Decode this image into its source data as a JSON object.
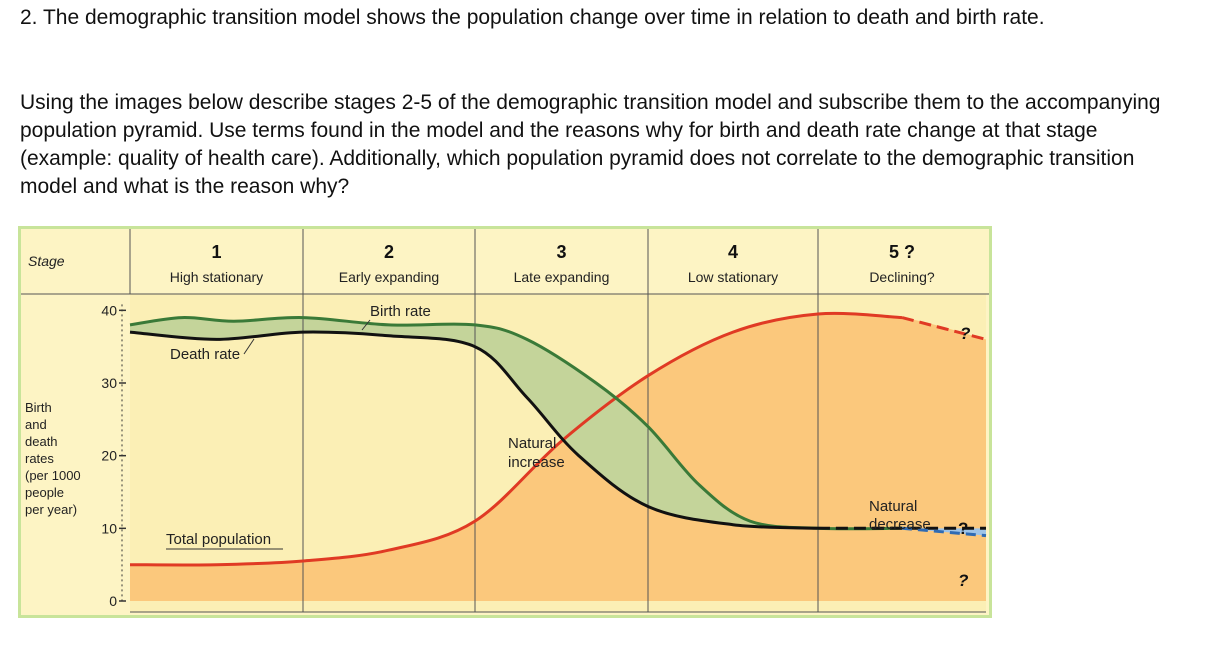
{
  "question": {
    "intro": "2. The demographic transition model shows the population change over time in relation to death and birth rate.",
    "instructions": "Using the images below describe stages 2-5 of the demographic transition model and subscribe them to the accompanying population pyramid. Use terms found in the model and the reasons why for birth and death rate change at that stage (example: quality of health care). Additionally, which population pyramid does not correlate to the demographic transition model and what is the reason why?"
  },
  "chart_data": {
    "type": "area",
    "stage_header": "Stage",
    "stages": [
      {
        "number": "1",
        "name": "High stationary"
      },
      {
        "number": "2",
        "name": "Early expanding"
      },
      {
        "number": "3",
        "name": "Late expanding"
      },
      {
        "number": "4",
        "name": "Low stationary"
      },
      {
        "number": "5 ?",
        "name": "Declining?"
      }
    ],
    "ylabel": [
      "Birth",
      "and",
      "death",
      "rates",
      "(per 1000",
      "people",
      "per year)"
    ],
    "yticks": [
      "40",
      "30",
      "20",
      "10",
      "0"
    ],
    "ylim": [
      0,
      45
    ],
    "series": [
      {
        "name": "Birth rate",
        "color": "#3a7a38",
        "x": [
          0,
          0.3,
          0.6,
          1,
          1.5,
          2,
          2.3,
          2.7,
          3,
          3.3,
          3.6,
          4,
          4.5,
          5
        ],
        "y": [
          38,
          39,
          38.5,
          39,
          38,
          38,
          36,
          30,
          24,
          16,
          11,
          10,
          10,
          9
        ]
      },
      {
        "name": "Death rate",
        "color": "#111111",
        "x": [
          0,
          0.5,
          1,
          1.5,
          2,
          2.3,
          2.6,
          3,
          3.5,
          4,
          4.5,
          5
        ],
        "y": [
          37,
          36,
          37,
          36.5,
          35,
          28,
          20,
          13,
          10.5,
          10,
          10,
          10
        ]
      },
      {
        "name": "Total population",
        "color": "#e03a24",
        "x": [
          0,
          0.5,
          1,
          1.5,
          2,
          2.5,
          3,
          3.5,
          4,
          4.5,
          5
        ],
        "y": [
          5,
          5,
          5.5,
          7,
          11,
          22,
          31,
          37,
          39.5,
          39,
          36
        ]
      }
    ],
    "annotations": {
      "birth_rate": "Birth rate",
      "death_rate": "Death rate",
      "total_population": "Total population",
      "natural_increase": [
        "Natural",
        "increase"
      ],
      "natural_decrease": [
        "Natural",
        "decrease"
      ],
      "question_mark": "?"
    },
    "colors": {
      "header_bg": "#fdf4c4",
      "stage1_bg": "#fbefb5",
      "natural_increase": "#c4d49a",
      "population_fill": "#fbc87c",
      "natural_decrease": "#9ec4e8",
      "border": "#c8e49a"
    }
  }
}
